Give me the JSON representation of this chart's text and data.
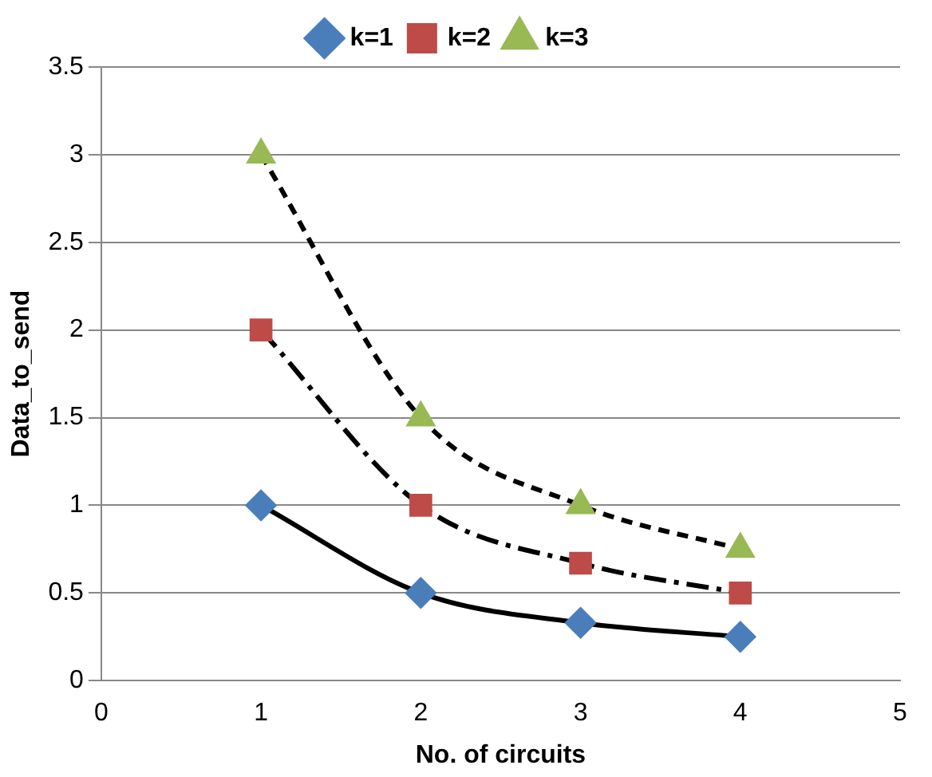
{
  "chart_data": {
    "type": "line",
    "xlabel": "No. of circuits",
    "ylabel": "Data_to_send",
    "x": [
      1,
      2,
      3,
      4
    ],
    "series": [
      {
        "name": "k=1",
        "color": "#4a7ebb",
        "values": [
          1,
          0.5,
          0.33,
          0.25
        ],
        "marker": "diamond",
        "line_style": "solid"
      },
      {
        "name": "k=2",
        "color": "#be4b48",
        "values": [
          2,
          1,
          0.67,
          0.5
        ],
        "marker": "square",
        "line_style": "dashdot"
      },
      {
        "name": "k=3",
        "color": "#98b954",
        "values": [
          3,
          1.5,
          1,
          0.75
        ],
        "marker": "triangle",
        "line_style": "dashed"
      }
    ],
    "xlim": [
      0,
      5
    ],
    "xticks": [
      0,
      1,
      2,
      3,
      4,
      5
    ],
    "ylim": [
      0,
      3.5
    ],
    "yticks": [
      0,
      0.5,
      1,
      1.5,
      2,
      2.5,
      3,
      3.5
    ],
    "grid": "y",
    "legend": "top"
  }
}
